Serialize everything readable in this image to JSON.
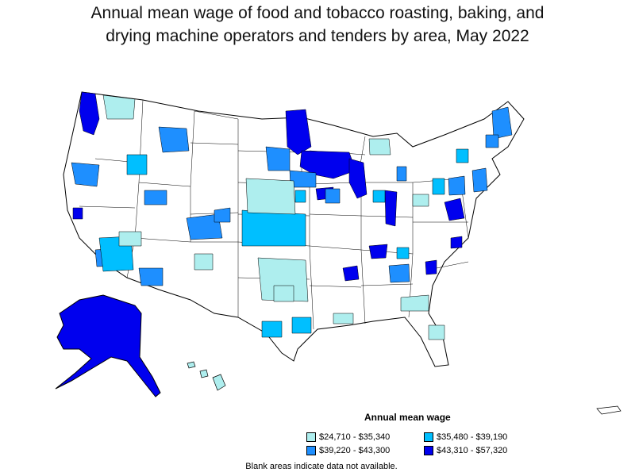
{
  "title": {
    "line1": "Annual mean wage of food and tobacco roasting, baking, and",
    "line2": "drying machine operators and tenders by area, May 2022"
  },
  "legend": {
    "title": "Annual mean wage",
    "items": [
      {
        "label": "$24,710 - $35,340",
        "color": "#aeeeee"
      },
      {
        "label": "$35,480 - $39,190",
        "color": "#00bfff"
      },
      {
        "label": "$39,220 - $43,300",
        "color": "#1e8fff"
      },
      {
        "label": "$43,310 - $57,320",
        "color": "#0000ee"
      }
    ]
  },
  "footnote": "Blank areas indicate data not available.",
  "colors": {
    "no_data": "#ffffff",
    "border": "#000000",
    "tier1": "#aeeeee",
    "tier2": "#00bfff",
    "tier3": "#1e8fff",
    "tier4": "#0000ee"
  }
}
